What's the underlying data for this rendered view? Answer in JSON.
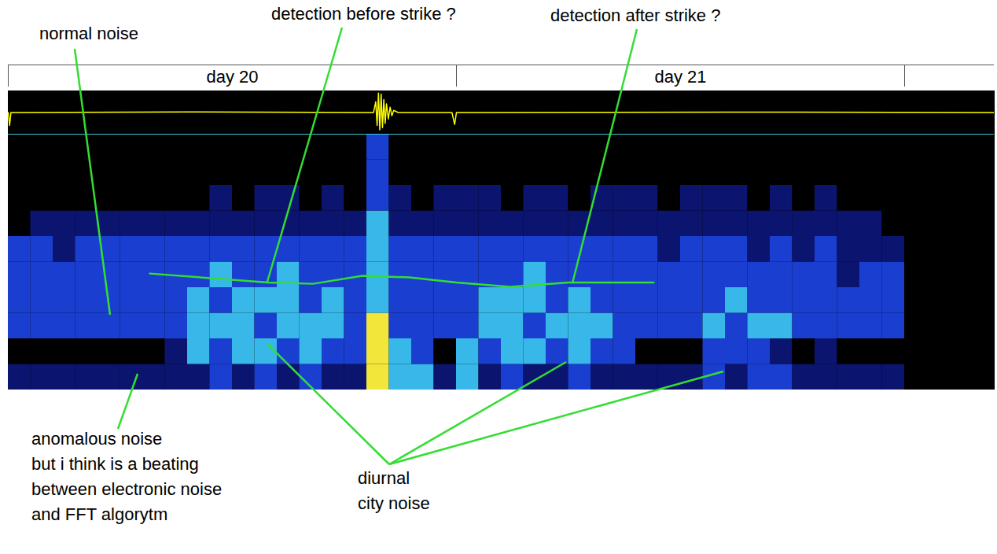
{
  "chart_data": {
    "type": "spectrogram",
    "xlim": [
      20,
      22.2
    ],
    "xticks": [
      20,
      21,
      22
    ],
    "tick_labels": false,
    "x_labels": [
      {
        "value": 20.5,
        "label": "day 20"
      },
      {
        "value": 21.5,
        "label": "day 21"
      }
    ],
    "ylim": [
      0,
      10
    ],
    "x_edges": [
      20,
      20.05,
      20.1,
      20.15,
      20.2,
      20.25,
      20.3,
      20.35,
      20.4,
      20.45,
      20.5,
      20.55,
      20.6,
      20.65,
      20.7,
      20.75,
      20.8,
      20.85,
      20.9,
      20.95,
      21,
      21.05,
      21.1,
      21.15,
      21.2,
      21.25,
      21.3,
      21.35,
      21.4,
      21.45,
      21.5,
      21.55,
      21.6,
      21.65,
      21.7,
      21.75,
      21.8,
      21.85,
      21.9,
      21.95,
      22
    ],
    "y_edges": [
      0,
      1,
      2,
      3,
      4,
      5,
      6,
      7,
      8,
      9,
      10
    ],
    "values": [
      [
        1,
        1,
        1,
        1,
        1,
        1,
        1,
        1,
        1,
        2,
        1,
        2,
        1,
        2,
        1,
        1,
        4,
        3,
        3,
        1,
        3,
        1,
        2,
        1,
        1,
        2,
        1,
        1,
        1,
        1,
        1,
        2,
        1,
        2,
        2,
        1,
        1,
        1,
        1,
        1
      ],
      [
        0,
        0,
        0,
        0,
        0,
        0,
        0,
        1,
        3,
        2,
        3,
        3,
        2,
        3,
        2,
        2,
        4,
        3,
        2,
        0,
        3,
        2,
        3,
        3,
        2,
        3,
        2,
        2,
        0,
        0,
        0,
        2,
        2,
        2,
        1,
        0,
        1,
        0,
        0,
        0
      ],
      [
        2,
        2,
        2,
        2,
        2,
        2,
        2,
        2,
        3,
        3,
        3,
        2,
        3,
        3,
        3,
        2,
        4,
        2,
        2,
        2,
        2,
        3,
        3,
        2,
        3,
        3,
        3,
        2,
        2,
        2,
        2,
        3,
        2,
        3,
        3,
        2,
        2,
        2,
        2,
        2
      ],
      [
        2,
        2,
        2,
        2,
        2,
        2,
        2,
        2,
        3,
        2,
        3,
        3,
        3,
        2,
        3,
        2,
        3,
        2,
        2,
        2,
        2,
        3,
        3,
        3,
        2,
        3,
        2,
        2,
        2,
        2,
        2,
        2,
        3,
        2,
        2,
        2,
        2,
        2,
        2,
        2
      ],
      [
        2,
        2,
        2,
        2,
        2,
        2,
        2,
        2,
        2,
        3,
        2,
        2,
        3,
        2,
        2,
        2,
        3,
        2,
        2,
        2,
        2,
        2,
        2,
        3,
        2,
        2,
        2,
        2,
        2,
        2,
        2,
        2,
        2,
        2,
        2,
        2,
        2,
        1,
        2,
        2
      ],
      [
        2,
        2,
        1,
        2,
        2,
        2,
        2,
        2,
        2,
        2,
        2,
        2,
        2,
        2,
        2,
        2,
        3,
        2,
        2,
        2,
        2,
        2,
        2,
        2,
        2,
        2,
        2,
        2,
        2,
        1,
        2,
        2,
        2,
        1,
        2,
        1,
        2,
        1,
        1,
        1
      ],
      [
        0,
        1,
        1,
        1,
        1,
        1,
        1,
        1,
        1,
        1,
        1,
        1,
        1,
        1,
        1,
        1,
        3,
        1,
        1,
        1,
        1,
        1,
        1,
        1,
        1,
        1,
        1,
        1,
        1,
        1,
        1,
        1,
        1,
        1,
        1,
        1,
        1,
        1,
        1,
        0
      ],
      [
        0,
        0,
        0,
        0,
        0,
        0,
        0,
        0,
        0,
        1,
        0,
        1,
        1,
        0,
        1,
        0,
        2,
        1,
        0,
        1,
        1,
        1,
        0,
        1,
        1,
        0,
        1,
        1,
        1,
        0,
        1,
        1,
        1,
        0,
        1,
        0,
        1,
        0,
        0,
        0
      ],
      [
        0,
        0,
        0,
        0,
        0,
        0,
        0,
        0,
        0,
        0,
        0,
        0,
        0,
        0,
        0,
        0,
        2,
        0,
        0,
        0,
        0,
        0,
        0,
        0,
        0,
        0,
        0,
        0,
        0,
        0,
        0,
        0,
        0,
        0,
        0,
        0,
        0,
        0,
        0,
        0
      ],
      [
        0,
        0,
        0,
        0,
        0,
        0,
        0,
        0,
        0,
        0,
        0,
        0,
        0,
        0,
        0,
        0,
        2,
        0,
        0,
        0,
        0,
        0,
        0,
        0,
        0,
        0,
        0,
        0,
        0,
        0,
        0,
        0,
        0,
        0,
        0,
        0,
        0,
        0,
        0,
        0
      ]
    ],
    "zlim": [
      0,
      4
    ],
    "colors": [
      "#000000",
      "#0b1570",
      "#1a3fd0",
      "#38b8e8",
      "#f2e63a"
    ],
    "seismogram": {
      "color": "#ffff00",
      "ylim": [
        -1,
        1
      ],
      "x": [
        20,
        20.003,
        20.006,
        20.01,
        20.4,
        20.815,
        20.82,
        20.823,
        20.826,
        20.829,
        20.832,
        20.835,
        20.838,
        20.841,
        20.844,
        20.848,
        20.852,
        20.856,
        20.86,
        20.87,
        20.99,
        20.996,
        21,
        21.6,
        22.2
      ],
      "values": [
        0,
        -0.6,
        0,
        0,
        0.03,
        0,
        0.5,
        -0.6,
        0.9,
        -0.8,
        0.85,
        -0.7,
        0.6,
        -0.5,
        0.4,
        -0.3,
        0.25,
        -0.15,
        0.1,
        0,
        0,
        -0.55,
        0,
        0.02,
        0
      ]
    },
    "detection": {
      "color": "#33dd33",
      "x": [
        20.316,
        20.58,
        20.68,
        20.79,
        20.895,
        21,
        21.12,
        21.25,
        21.44
      ],
      "values": [
        4.55,
        4.2,
        4.15,
        4.46,
        4.4,
        4.2,
        4.03,
        4.2,
        4.2
      ]
    },
    "annotations": [
      {
        "lines": [
          "normal noise"
        ],
        "color": "#33dd33"
      },
      {
        "lines": [
          "detection before strike ?"
        ],
        "color": "#33dd33"
      },
      {
        "lines": [
          "detection after strike ?"
        ],
        "color": "#33dd33"
      },
      {
        "lines": [
          "anomalous noise",
          "but i think is a beating",
          "between electronic noise",
          "and FFT algorytm"
        ],
        "color": "#33dd33"
      },
      {
        "lines": [
          "diurnal",
          "city noise"
        ],
        "color": "#33dd33"
      }
    ]
  }
}
